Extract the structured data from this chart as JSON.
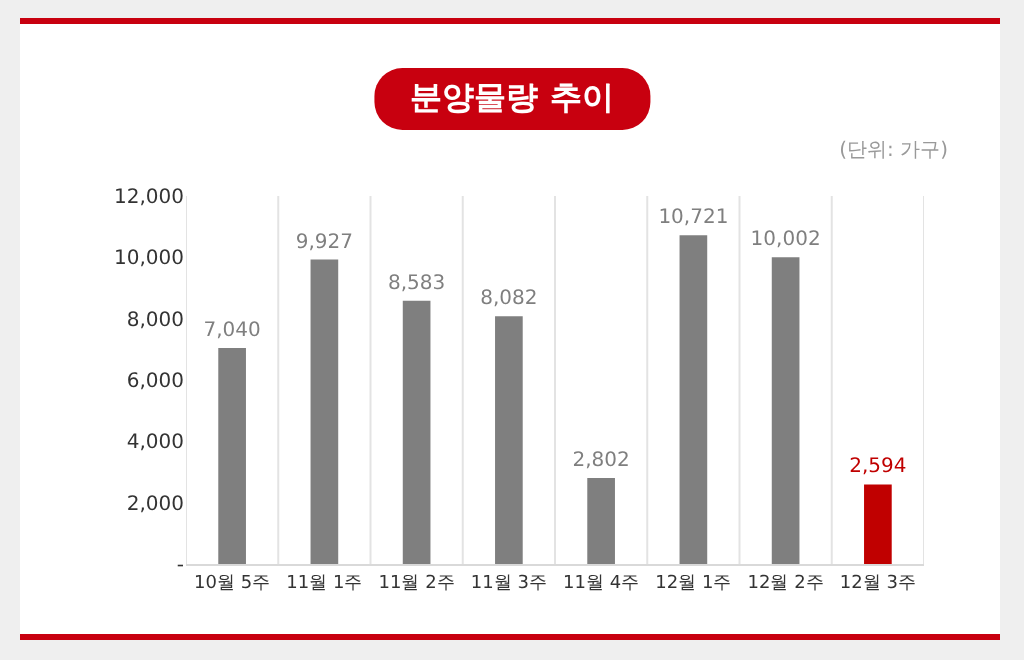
{
  "chart_data": {
    "type": "bar",
    "title": "분양물량 추이",
    "annotations": [
      "(단위: 가구)"
    ],
    "categories": [
      "10월 5주",
      "11월 1주",
      "11월 2주",
      "11월 3주",
      "11월 4주",
      "12월 1주",
      "12월 2주",
      "12월 3주"
    ],
    "values": [
      7040,
      9927,
      8583,
      8082,
      2802,
      10721,
      10002,
      2594
    ],
    "value_labels": [
      "7,040",
      "9,927",
      "8,583",
      "8,082",
      "2,802",
      "10,721",
      "10,002",
      "2,594"
    ],
    "colors": [
      "#7f7f7f",
      "#7f7f7f",
      "#7f7f7f",
      "#7f7f7f",
      "#7f7f7f",
      "#7f7f7f",
      "#7f7f7f",
      "#c00000"
    ],
    "ylim": [
      0,
      12000
    ],
    "yticks": [
      {
        "value": 0,
        "label": "-"
      },
      {
        "value": 2000,
        "label": "2,000"
      },
      {
        "value": 4000,
        "label": "4,000"
      },
      {
        "value": 6000,
        "label": "6,000"
      },
      {
        "value": 8000,
        "label": "8,000"
      },
      {
        "value": 10000,
        "label": "10,000"
      },
      {
        "value": 12000,
        "label": "12,000"
      }
    ],
    "grid": "x"
  }
}
